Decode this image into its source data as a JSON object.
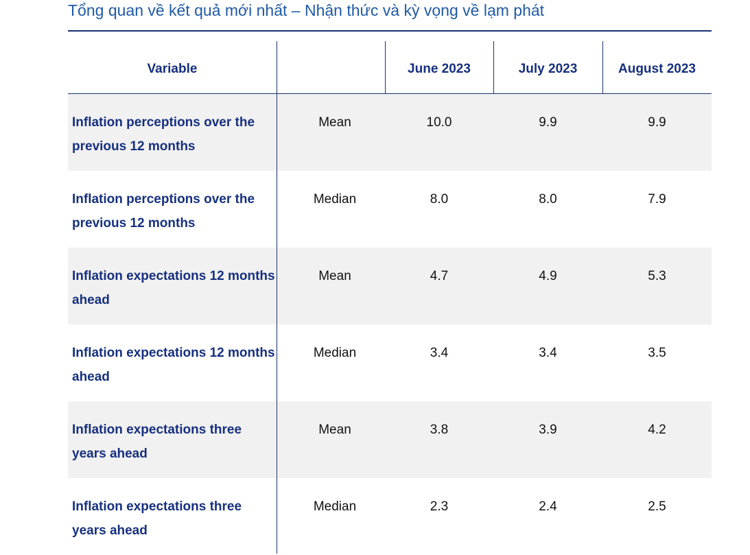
{
  "title": "Tổng quan về kết quả mới nhất – Nhận thức và kỳ vọng về lạm phát",
  "chart_data": {
    "type": "table",
    "columns": [
      "Variable",
      "",
      "June 2023",
      "July 2023",
      "August 2023"
    ],
    "rows": [
      {
        "variable": "Inflation perceptions over the previous 12 months",
        "stat": "Mean",
        "values": [
          "10.0",
          "9.9",
          "9.9"
        ]
      },
      {
        "variable": "Inflation perceptions over the previous 12 months",
        "stat": "Median",
        "values": [
          "8.0",
          "8.0",
          "7.9"
        ]
      },
      {
        "variable": "Inflation expectations 12 months ahead",
        "stat": "Mean",
        "values": [
          "4.7",
          "4.9",
          "5.3"
        ]
      },
      {
        "variable": "Inflation expectations 12 months ahead",
        "stat": "Median",
        "values": [
          "3.4",
          "3.4",
          "3.5"
        ]
      },
      {
        "variable": "Inflation expectations three years ahead",
        "stat": "Mean",
        "values": [
          "3.8",
          "3.9",
          "4.2"
        ]
      },
      {
        "variable": "Inflation expectations three years ahead",
        "stat": "Median",
        "values": [
          "2.3",
          "2.4",
          "2.5"
        ]
      }
    ]
  },
  "colors": {
    "title": "#1f5aa6",
    "header_text": "#16307f",
    "rule": "#16326e",
    "row_shade": "#f1f1f1"
  }
}
